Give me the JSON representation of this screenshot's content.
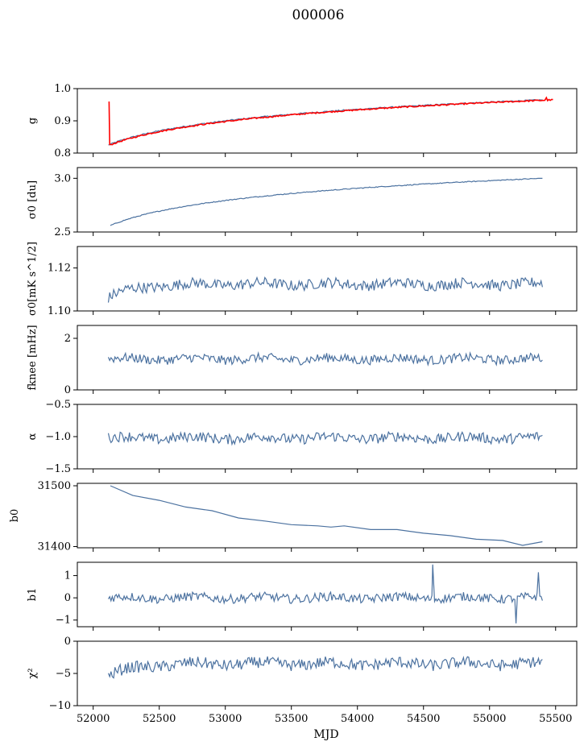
{
  "title": "000006",
  "chart_data": [
    {
      "type": "line",
      "ylabel": "g",
      "ylim": [
        0.8,
        1.0
      ],
      "yticks": [
        "0.8",
        "0.9",
        "1.0"
      ],
      "series": [
        {
          "color": "#4c72a0",
          "shape": "log_rise",
          "x_range": [
            52115,
            55400
          ],
          "y_start": 0.825,
          "y_end": 0.965,
          "noise": 0.002
        },
        {
          "color": "#ff0000",
          "shape": "log_rise",
          "x_range": [
            52115,
            55480
          ],
          "y_start": 0.823,
          "y_end": 0.965,
          "noise": 0.002,
          "spikes": [
            {
              "x": 52120,
              "y": 0.96
            },
            {
              "x": 55430,
              "y": 0.972
            }
          ]
        }
      ]
    },
    {
      "type": "line",
      "ylabel": "σ0 [du]",
      "ylim": [
        2.5,
        3.1
      ],
      "yticks": [
        "2.5",
        "3.0"
      ],
      "series": [
        {
          "color": "#4c72a0",
          "shape": "log_rise",
          "x_range": [
            52130,
            55400
          ],
          "y_start": 2.56,
          "y_end": 3.0,
          "noise": 0.004
        }
      ]
    },
    {
      "type": "line",
      "ylabel": "σ0[mK s^1/2]",
      "ylim": [
        1.1,
        1.13
      ],
      "yticks": [
        "1.10",
        "1.12"
      ],
      "series": [
        {
          "color": "#4c72a0",
          "shape": "noisy",
          "x_range": [
            52115,
            55400
          ],
          "y_mean": 1.1125,
          "y_start": 1.106,
          "noise": 0.0025
        }
      ]
    },
    {
      "type": "line",
      "ylabel": "fknee [mHz]",
      "ylim": [
        0,
        2.5
      ],
      "yticks": [
        "0",
        "2"
      ],
      "series": [
        {
          "color": "#4c72a0",
          "shape": "noisy",
          "x_range": [
            52115,
            55400
          ],
          "y_mean": 1.2,
          "noise": 0.18
        }
      ]
    },
    {
      "type": "line",
      "ylabel": "α",
      "ylim": [
        -1.5,
        -0.5
      ],
      "yticks": [
        "−1.5",
        "−1.0",
        "−0.5"
      ],
      "series": [
        {
          "color": "#4c72a0",
          "shape": "noisy",
          "x_range": [
            52115,
            55400
          ],
          "y_mean": -1.02,
          "noise": 0.08
        }
      ]
    },
    {
      "type": "line",
      "ylabel": "b0",
      "ylim": [
        31398,
        31504
      ],
      "yticks": [
        "31400",
        "31500"
      ],
      "series": [
        {
          "color": "#4c72a0",
          "shape": "points",
          "x": [
            52130,
            52300,
            52500,
            52700,
            52900,
            53100,
            53300,
            53500,
            53700,
            53800,
            53900,
            54100,
            54300,
            54500,
            54700,
            54900,
            55100,
            55250,
            55400
          ],
          "y": [
            31500,
            31484,
            31476,
            31465,
            31459,
            31447,
            31442,
            31436,
            31434,
            31432,
            31434,
            31428,
            31428,
            31422,
            31418,
            31412,
            31410,
            31402,
            31408
          ]
        }
      ]
    },
    {
      "type": "line",
      "ylabel": "b1",
      "ylim": [
        -1.3,
        1.6
      ],
      "yticks": [
        "−1",
        "0",
        "1"
      ],
      "series": [
        {
          "color": "#4c72a0",
          "shape": "noisy",
          "x_range": [
            52115,
            55400
          ],
          "y_mean": 0.0,
          "noise": 0.2,
          "spikes": [
            {
              "x": 54570,
              "y": 1.5
            },
            {
              "x": 55370,
              "y": 1.15
            },
            {
              "x": 55200,
              "y": -1.15
            }
          ]
        }
      ]
    },
    {
      "type": "line",
      "ylabel": "χ²",
      "ylim": [
        -10,
        0
      ],
      "yticks": [
        "−10",
        "−5",
        "0"
      ],
      "xlabel": "MJD",
      "xticks": [
        "52000",
        "52500",
        "53000",
        "53500",
        "54000",
        "54500",
        "55000",
        "55500"
      ],
      "series": [
        {
          "color": "#4c72a0",
          "shape": "noisy",
          "x_range": [
            52115,
            55400
          ],
          "y_mean": -3.5,
          "y_start": -5.5,
          "noise": 0.9
        }
      ]
    }
  ],
  "xlim": [
    51880,
    55660
  ]
}
